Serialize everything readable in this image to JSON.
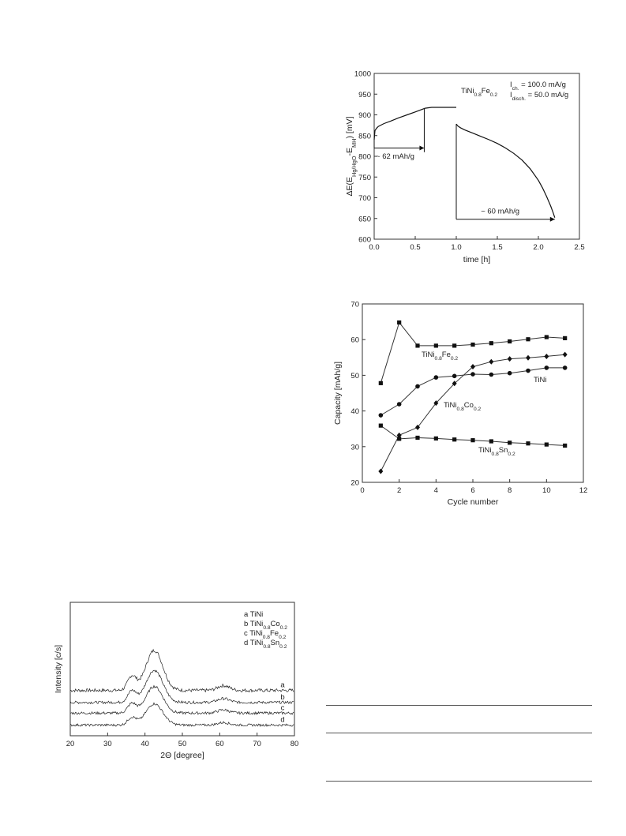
{
  "chart_data": [
    {
      "id": "potential",
      "type": "line",
      "xlabel": "time [h]",
      "ylabel_parts": {
        "a": "ΔE(E",
        "s1": "Hg/HgO",
        "b": "-E",
        "s2": "MH",
        "c": ") [mV]"
      },
      "xlim": [
        0.0,
        2.5
      ],
      "ylim": [
        600,
        1000
      ],
      "xticks": [
        "0.0",
        "0.5",
        "1.0",
        "1.5",
        "2.0",
        "2.5"
      ],
      "yticks": [
        "600",
        "650",
        "700",
        "750",
        "800",
        "850",
        "900",
        "950",
        "1000"
      ],
      "legend": {
        "alloy": {
          "base": "TiNi",
          "s1": "0.8",
          "mid": "Fe",
          "s2": "0.2"
        },
        "ich": {
          "base": "I",
          "sub": "ch.",
          "val": " = 100.0 mA/g"
        },
        "idis": {
          "base": "I",
          "sub": "disch.",
          "val": " = 50.0 mA/g"
        }
      },
      "annotations": [
        "~ 62 mAh/g",
        "~ 60 mAh/g"
      ],
      "series": [
        {
          "name": "charge",
          "x": [
            0.0,
            0.01,
            0.03,
            0.05,
            0.08,
            0.12,
            0.2,
            0.3,
            0.4,
            0.5,
            0.58,
            0.62,
            0.7,
            0.8,
            0.9,
            1.0
          ],
          "y": [
            840,
            862,
            868,
            872,
            875,
            879,
            885,
            893,
            900,
            907,
            913,
            916,
            918,
            918,
            918,
            918
          ]
        },
        {
          "name": "discharge",
          "x": [
            1.0,
            1.02,
            1.05,
            1.1,
            1.2,
            1.3,
            1.4,
            1.5,
            1.6,
            1.7,
            1.8,
            1.9,
            2.0,
            2.05,
            2.1,
            2.15,
            2.18,
            2.2
          ],
          "y": [
            878,
            873,
            869,
            864,
            856,
            848,
            840,
            831,
            820,
            807,
            791,
            770,
            742,
            724,
            703,
            680,
            664,
            652
          ]
        }
      ]
    },
    {
      "id": "cycling",
      "type": "line",
      "xlabel": "Cycle number",
      "ylabel": "Capacity [mAh/g]",
      "xlim": [
        0,
        12
      ],
      "ylim": [
        20,
        70
      ],
      "xticks": [
        "0",
        "2",
        "4",
        "6",
        "8",
        "10",
        "12"
      ],
      "yticks": [
        "20",
        "30",
        "40",
        "50",
        "60",
        "70"
      ],
      "x": [
        1,
        2,
        3,
        4,
        5,
        6,
        7,
        8,
        9,
        10,
        11
      ],
      "series": [
        {
          "name": "TiNi0.8Fe0.2",
          "label": {
            "base": "TiNi",
            "s1": "0.8",
            "mid": "Fe",
            "s2": "0.2"
          },
          "marker": "square",
          "values": [
            47.8,
            64.8,
            58.3,
            58.3,
            58.3,
            58.6,
            59.0,
            59.5,
            60.1,
            60.7,
            60.4
          ]
        },
        {
          "name": "TiNi",
          "label": {
            "base": "TiNi"
          },
          "marker": "circle",
          "values": [
            38.8,
            41.9,
            46.9,
            49.4,
            49.8,
            50.3,
            50.2,
            50.6,
            51.3,
            52.1,
            52.1
          ]
        },
        {
          "name": "TiNi0.8Co0.2",
          "label": {
            "base": "TiNi",
            "s1": "0.8",
            "mid": "Co",
            "s2": "0.2"
          },
          "marker": "diamond",
          "values": [
            23.1,
            33.2,
            35.4,
            42.2,
            47.7,
            52.4,
            53.8,
            54.6,
            54.9,
            55.3,
            55.8
          ]
        },
        {
          "name": "TiNi0.8Sn0.2",
          "label": {
            "base": "TiNi",
            "s1": "0.8",
            "mid": "Sn",
            "s2": "0.2"
          },
          "marker": "square",
          "values": [
            35.9,
            32.2,
            32.5,
            32.3,
            32.0,
            31.8,
            31.5,
            31.1,
            30.9,
            30.6,
            30.3
          ]
        }
      ]
    },
    {
      "id": "xrd",
      "type": "line",
      "xlabel": "2Θ [degree]",
      "ylabel": "Intensity [c/s]",
      "xlim": [
        20,
        80
      ],
      "xticks": [
        "20",
        "30",
        "40",
        "50",
        "60",
        "70",
        "80"
      ],
      "legend": [
        {
          "key": "a",
          "base": "TiNi"
        },
        {
          "key": "b",
          "base": "TiNi",
          "s1": "0.8",
          "mid": "Co",
          "s2": "0.2"
        },
        {
          "key": "c",
          "base": "TiNi",
          "s1": "0.8",
          "mid": "Fe",
          "s2": "0.2"
        },
        {
          "key": "d",
          "base": "TiNi",
          "s1": "0.8",
          "mid": "Sn",
          "s2": "0.2"
        }
      ],
      "series": [
        {
          "name": "a",
          "baseline": 0.34,
          "peak": 0.3,
          "noise": 0.025
        },
        {
          "name": "b",
          "baseline": 0.25,
          "peak": 0.24,
          "noise": 0.02
        },
        {
          "name": "c",
          "baseline": 0.17,
          "peak": 0.2,
          "noise": 0.02
        },
        {
          "name": "d",
          "baseline": 0.08,
          "peak": 0.16,
          "noise": 0.018
        }
      ]
    }
  ]
}
